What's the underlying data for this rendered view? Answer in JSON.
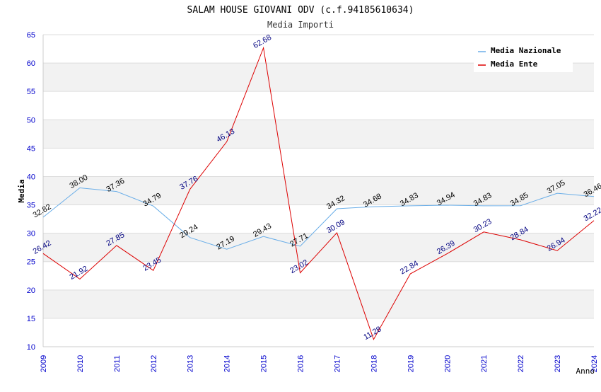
{
  "chart_data": {
    "type": "line",
    "title": "SALAM HOUSE GIOVANI ODV (c.f.94185610634)",
    "subtitle": "Media Importi",
    "xlabel": "Anno",
    "ylabel": "Media",
    "ylim": [
      10,
      65
    ],
    "yticks": [
      "10",
      "15",
      "20",
      "25",
      "30",
      "35",
      "40",
      "45",
      "50",
      "55",
      "60",
      "65"
    ],
    "categories": [
      "2009",
      "2010",
      "2011",
      "2012",
      "2013",
      "2014",
      "2015",
      "2016",
      "2017",
      "2018",
      "2019",
      "2020",
      "2021",
      "2022",
      "2023",
      "2024"
    ],
    "grid": true,
    "legend_position": "top-right",
    "series": [
      {
        "name": "Media Nazionale",
        "color": "#6aaee8",
        "label_color": "#000000",
        "values": [
          32.82,
          38.0,
          37.36,
          34.79,
          29.24,
          27.19,
          29.43,
          27.71,
          34.32,
          34.68,
          34.83,
          34.94,
          34.83,
          34.85,
          37.05,
          36.46
        ],
        "labels": [
          "32.82",
          "38.00",
          "37.36",
          "34.79",
          "29.24",
          "27.19",
          "29.43",
          "27.71",
          "34.32",
          "34.68",
          "34.83",
          "34.94",
          "34.83",
          "34.85",
          "37.05",
          "36.46"
        ]
      },
      {
        "name": "Media Ente",
        "color": "#dd0000",
        "label_color": "#000080",
        "values": [
          26.42,
          21.92,
          27.85,
          23.45,
          37.76,
          46.13,
          62.68,
          23.02,
          30.09,
          11.28,
          22.84,
          26.39,
          30.23,
          28.84,
          26.94,
          32.22
        ],
        "labels": [
          "26.42",
          "21.92",
          "27.85",
          "23.45",
          "37.76",
          "46.13",
          "62.68",
          "23.02",
          "30.09",
          "11.28",
          "22.84",
          "26.39",
          "30.23",
          "28.84",
          "26.94",
          "32.22"
        ]
      }
    ],
    "colors": {
      "axis_text": "#0000cc",
      "band": "#f2f2f2",
      "gridline": "#dddddd"
    }
  }
}
